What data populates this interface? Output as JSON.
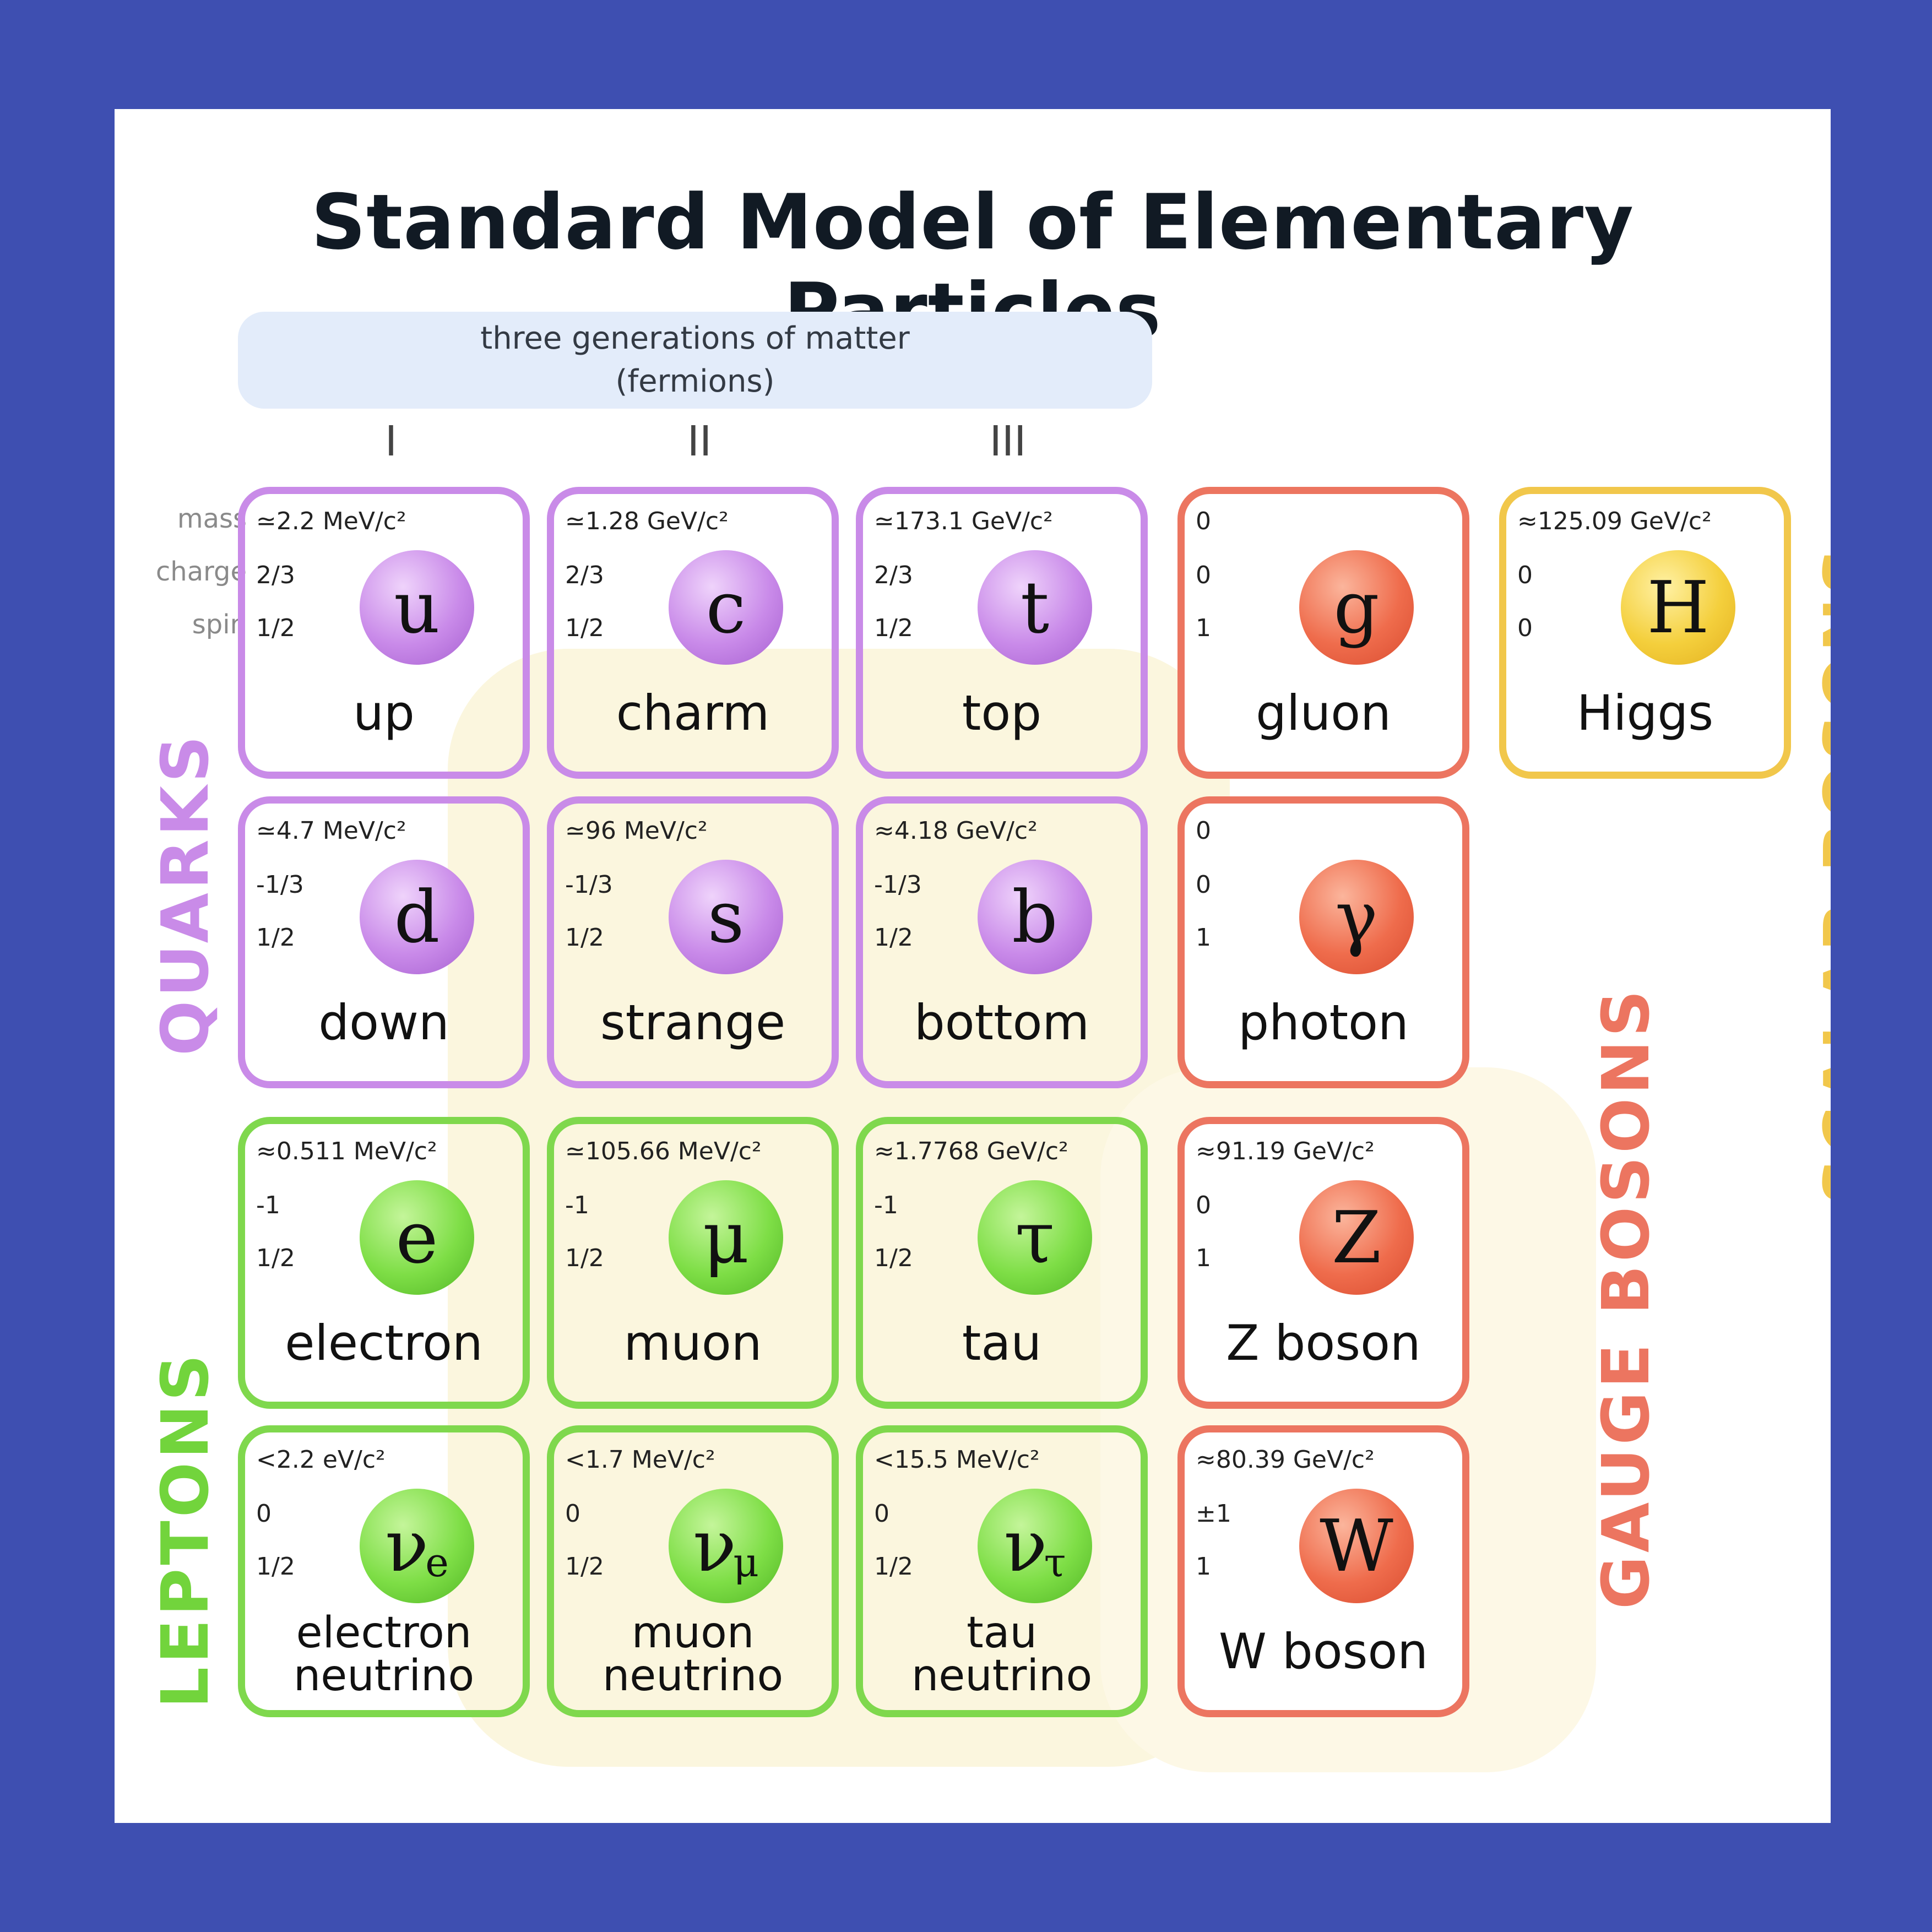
{
  "title": "Standard Model of Elementary Particles",
  "fermions_header": {
    "line1": "three generations of matter",
    "line2": "(fermions)"
  },
  "generations": [
    "I",
    "II",
    "III"
  ],
  "row_labels": {
    "mass": "mass",
    "charge": "charge",
    "spin": "spin"
  },
  "groups": {
    "quarks": "QUARKS",
    "leptons": "LEPTONS",
    "gauge_bosons": "GAUGE BOSONS",
    "scalar_bosons": "SCALAR BOSONS"
  },
  "colors": {
    "quark": "#c98be8",
    "lepton": "#7fd84d",
    "gauge": "#ec7560",
    "scalar": "#f1c74b",
    "background": "#3e4fb1"
  },
  "particles": {
    "up": {
      "mass": "≃2.2 MeV/c²",
      "charge": "2/3",
      "spin": "1/2",
      "symbol": "u",
      "name": "up"
    },
    "charm": {
      "mass": "≃1.28 GeV/c²",
      "charge": "2/3",
      "spin": "1/2",
      "symbol": "c",
      "name": "charm"
    },
    "top": {
      "mass": "≃173.1 GeV/c²",
      "charge": "2/3",
      "spin": "1/2",
      "symbol": "t",
      "name": "top"
    },
    "gluon": {
      "mass": "0",
      "charge": "0",
      "spin": "1",
      "symbol": "g",
      "name": "gluon"
    },
    "higgs": {
      "mass": "≈125.09 GeV/c²",
      "charge": "0",
      "spin": "0",
      "symbol": "H",
      "name": "Higgs"
    },
    "down": {
      "mass": "≃4.7 MeV/c²",
      "charge": "-1/3",
      "spin": "1/2",
      "symbol": "d",
      "name": "down"
    },
    "strange": {
      "mass": "≃96 MeV/c²",
      "charge": "-1/3",
      "spin": "1/2",
      "symbol": "s",
      "name": "strange"
    },
    "bottom": {
      "mass": "≈4.18 GeV/c²",
      "charge": "-1/3",
      "spin": "1/2",
      "symbol": "b",
      "name": "bottom"
    },
    "photon": {
      "mass": "0",
      "charge": "0",
      "spin": "1",
      "symbol": "γ",
      "name": "photon"
    },
    "electron": {
      "mass": "≈0.511 MeV/c²",
      "charge": "-1",
      "spin": "1/2",
      "symbol": "e",
      "name": "electron"
    },
    "muon": {
      "mass": "≃105.66 MeV/c²",
      "charge": "-1",
      "spin": "1/2",
      "symbol": "μ",
      "name": "muon"
    },
    "tau": {
      "mass": "≈1.7768 GeV/c²",
      "charge": "-1",
      "spin": "1/2",
      "symbol": "τ",
      "name": "tau"
    },
    "zboson": {
      "mass": "≈91.19 GeV/c²",
      "charge": "0",
      "spin": "1",
      "symbol": "Z",
      "name": "Z boson"
    },
    "enu": {
      "mass": "<2.2 eV/c²",
      "charge": "0",
      "spin": "1/2",
      "symbol": "ν",
      "sub": "e",
      "name1": "electron",
      "name2": "neutrino"
    },
    "munu": {
      "mass": "<1.7 MeV/c²",
      "charge": "0",
      "spin": "1/2",
      "symbol": "ν",
      "sub": "μ",
      "name1": "muon",
      "name2": "neutrino"
    },
    "taunu": {
      "mass": "<15.5 MeV/c²",
      "charge": "0",
      "spin": "1/2",
      "symbol": "ν",
      "sub": "τ",
      "name1": "tau",
      "name2": "neutrino"
    },
    "wboson": {
      "mass": "≈80.39 GeV/c²",
      "charge": "±1",
      "spin": "1",
      "symbol": "W",
      "name": "W boson"
    }
  }
}
